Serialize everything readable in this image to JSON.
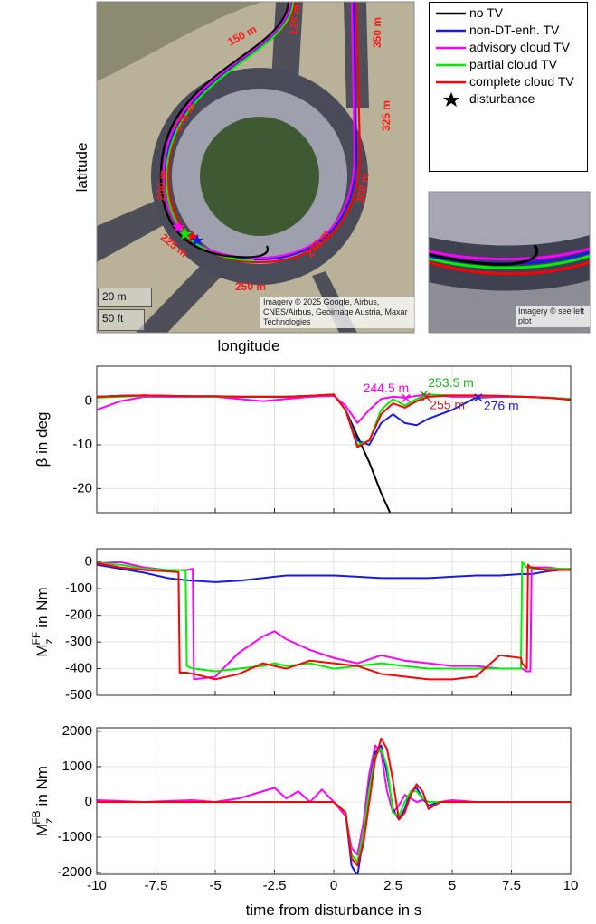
{
  "map": {
    "xlabel": "longitude",
    "ylabel": "latitude",
    "distance_labels": [
      "125 m",
      "150 m",
      "175 m",
      "200 m",
      "225 m",
      "250 m",
      "275 m",
      "300 m",
      "325 m",
      "350 m"
    ],
    "scale_labels": [
      "20 m",
      "50 ft"
    ],
    "attribution": "Imagery © 2025 Google, Airbus, CNES/Airbus, Geoimage Austria, Maxar Technologies",
    "inset_attribution": "Imagery © see left plot",
    "disturbance_label": "disturbance"
  },
  "chart_data": [
    {
      "type": "line",
      "ylabel": "β in deg",
      "xlim": [
        -10,
        10
      ],
      "ylim": [
        -25.5,
        8
      ],
      "xticks": [
        -10,
        -7.5,
        -5,
        -2.5,
        0,
        2.5,
        5,
        7.5,
        10
      ],
      "yticks": [
        -20,
        -10,
        0
      ],
      "grid": true,
      "show_xtick_labels": false,
      "x": [
        -10,
        -9,
        -8,
        -7,
        -6,
        -5,
        -4,
        -3,
        -2,
        -1,
        0,
        0.5,
        1,
        1.5,
        2,
        2.5,
        3,
        3.5,
        4,
        5,
        6,
        7,
        8,
        9,
        10
      ],
      "series": [
        {
          "name": "no TV",
          "color": "#000000",
          "values": [
            1,
            1.2,
            1.3,
            1.2,
            1.1,
            1.1,
            1,
            1,
            1,
            1.2,
            1.5,
            -2,
            -8,
            -14,
            -21,
            -27,
            null,
            null,
            null,
            null,
            null,
            null,
            null,
            null,
            null
          ]
        },
        {
          "name": "non-DT-enh. TV",
          "color": "#1a1ae6",
          "values": [
            1,
            1.2,
            1.3,
            1.2,
            1.1,
            1.1,
            1,
            1,
            1,
            1.2,
            1.5,
            -2,
            -9,
            -10,
            -5,
            -3,
            -5,
            -5.5,
            -4,
            -2,
            0.8,
            1,
            1,
            0.8,
            0.5
          ]
        },
        {
          "name": "advisory cloud TV",
          "color": "#ff00ff",
          "values": [
            -2,
            0,
            1,
            1,
            1,
            1,
            0.5,
            0,
            0.5,
            1,
            1.2,
            -1,
            -5,
            -2,
            0.5,
            1,
            0.8,
            1.2,
            1.5,
            1,
            1,
            1,
            1,
            0.8,
            0.5
          ]
        },
        {
          "name": "partial cloud TV",
          "color": "#00ee00",
          "values": [
            0.8,
            1,
            1.2,
            1.2,
            1.1,
            1,
            1,
            1,
            1,
            1.2,
            1.5,
            -2,
            -10,
            -9,
            -2,
            0.5,
            -1,
            0.5,
            1.5,
            1.3,
            1.2,
            1.2,
            1,
            0.8,
            0.5
          ]
        },
        {
          "name": "complete cloud TV",
          "color": "#ff0000",
          "values": [
            1,
            1.2,
            1.3,
            1.2,
            1.1,
            1.1,
            1,
            1,
            1,
            1.2,
            1.5,
            -2,
            -10.5,
            -9,
            -3,
            -0.5,
            -1.5,
            0,
            1,
            1.3,
            1.3,
            1.2,
            1,
            0.8,
            0.3
          ]
        }
      ],
      "annotations": [
        {
          "text": "244.5 m",
          "x": 3.05,
          "y": 0.7,
          "color": "#ff00ff"
        },
        {
          "text": "253.5 m",
          "x": 3.8,
          "y": 1.5,
          "color": "#22aa22"
        },
        {
          "text": "255 m",
          "x": 3.9,
          "y": 1,
          "color": "#cc2222"
        },
        {
          "text": "276 m",
          "x": 6.1,
          "y": 0.8,
          "color": "#1a1ae6"
        }
      ]
    },
    {
      "type": "line",
      "ylabel": {
        "symbol": "M",
        "sub": "z",
        "sup": "FF",
        "unit": "in Nm"
      },
      "xlim": [
        -10,
        10
      ],
      "ylim": [
        -500,
        50
      ],
      "xticks": [
        -10,
        -7.5,
        -5,
        -2.5,
        0,
        2.5,
        5,
        7.5,
        10
      ],
      "yticks": [
        -500,
        -400,
        -300,
        -200,
        -100,
        0
      ],
      "grid": true,
      "show_xtick_labels": false,
      "x": [
        -10,
        -9,
        -8,
        -7,
        -6.55,
        -6.5,
        -6.25,
        -6.2,
        -5.95,
        -5.9,
        -5,
        -4,
        -3,
        -2.5,
        -2,
        -1,
        0,
        1,
        2,
        3,
        4,
        5,
        6,
        7,
        7.9,
        7.95,
        8.15,
        8.2,
        8.3,
        8.35,
        9,
        10
      ],
      "series": [
        {
          "name": "non-DT-enh. TV",
          "color": "#1a1ae6",
          "values": [
            -10,
            -25,
            -40,
            -60,
            -65,
            -65,
            -68,
            -68,
            -70,
            -70,
            -75,
            -70,
            -60,
            -55,
            -50,
            -50,
            -50,
            -55,
            -60,
            -60,
            -60,
            -55,
            -50,
            -50,
            -45,
            -45,
            -45,
            -45,
            -45,
            -45,
            -35,
            -25
          ]
        },
        {
          "name": "advisory cloud TV",
          "color": "#ff00ff",
          "values": [
            -5,
            0,
            -20,
            -30,
            -30,
            -30,
            -30,
            -30,
            -25,
            -440,
            -430,
            -340,
            -280,
            -260,
            -290,
            -330,
            -360,
            -380,
            -350,
            -370,
            -380,
            -390,
            -390,
            -400,
            -400,
            -400,
            -410,
            -410,
            -410,
            -20,
            -20,
            -30
          ]
        },
        {
          "name": "partial cloud TV",
          "color": "#00ee00",
          "values": [
            -5,
            -10,
            -25,
            -30,
            -30,
            -30,
            -32,
            -390,
            -400,
            -400,
            -410,
            -400,
            -390,
            -380,
            -390,
            -380,
            -400,
            -390,
            -380,
            -390,
            -400,
            -400,
            -400,
            -400,
            -400,
            0,
            -20,
            -20,
            -22,
            -25,
            -25,
            -25
          ]
        },
        {
          "name": "complete cloud TV",
          "color": "#ff0000",
          "values": [
            -5,
            -20,
            -30,
            -35,
            -38,
            -415,
            -415,
            -415,
            -420,
            -420,
            -440,
            -420,
            -380,
            -390,
            -400,
            -370,
            -380,
            -390,
            -420,
            -430,
            -440,
            -440,
            -430,
            -350,
            -360,
            -380,
            -400,
            -10,
            -20,
            -20,
            -30,
            -30
          ]
        }
      ]
    },
    {
      "type": "line",
      "ylabel": {
        "symbol": "M",
        "sub": "z",
        "sup": "FB",
        "unit": "in Nm"
      },
      "xlabel": "time from disturbance in s",
      "xlim": [
        -10,
        10
      ],
      "ylim": [
        -2050,
        2100
      ],
      "xticks": [
        -10,
        -7.5,
        -5,
        -2.5,
        0,
        2.5,
        5,
        7.5,
        10
      ],
      "yticks": [
        -2000,
        -1000,
        0,
        1000,
        2000
      ],
      "grid": true,
      "show_xtick_labels": true,
      "x": [
        -10,
        -8,
        -6,
        -5,
        -4,
        -3,
        -2.5,
        -2,
        -1.5,
        -1,
        -0.5,
        0,
        0.5,
        0.75,
        1,
        1.25,
        1.5,
        1.75,
        2,
        2.25,
        2.5,
        2.75,
        3,
        3.25,
        3.5,
        3.75,
        4,
        4.5,
        5,
        6,
        8,
        10
      ],
      "series": [
        {
          "name": "advisory cloud TV",
          "color": "#ff00ff",
          "values": [
            50,
            0,
            50,
            0,
            100,
            300,
            400,
            100,
            300,
            0,
            350,
            0,
            -400,
            -1300,
            -1500,
            -600,
            800,
            1600,
            1400,
            300,
            -300,
            -100,
            200,
            100,
            0,
            50,
            0,
            0,
            50,
            0,
            0,
            0
          ]
        },
        {
          "name": "non-DT-enh. TV",
          "color": "#1a1ae6",
          "values": [
            0,
            0,
            0,
            0,
            0,
            0,
            0,
            0,
            0,
            0,
            0,
            0,
            -300,
            -1800,
            -2100,
            -1000,
            500,
            1400,
            1600,
            800,
            -200,
            -500,
            -200,
            300,
            400,
            100,
            -100,
            0,
            0,
            0,
            0,
            0
          ]
        },
        {
          "name": "partial cloud TV",
          "color": "#00ee00",
          "values": [
            0,
            0,
            0,
            0,
            0,
            0,
            0,
            0,
            0,
            0,
            0,
            0,
            -300,
            -1500,
            -1700,
            -900,
            400,
            1300,
            1500,
            1000,
            -300,
            -400,
            0,
            300,
            300,
            100,
            0,
            0,
            0,
            0,
            0,
            0
          ]
        },
        {
          "name": "complete cloud TV",
          "color": "#ff0000",
          "values": [
            0,
            0,
            0,
            0,
            0,
            0,
            0,
            0,
            0,
            0,
            0,
            0,
            -300,
            -1600,
            -1800,
            -1200,
            0,
            1200,
            1800,
            1500,
            600,
            -500,
            -300,
            200,
            500,
            300,
            -200,
            0,
            0,
            0,
            0,
            0
          ]
        }
      ]
    }
  ]
}
